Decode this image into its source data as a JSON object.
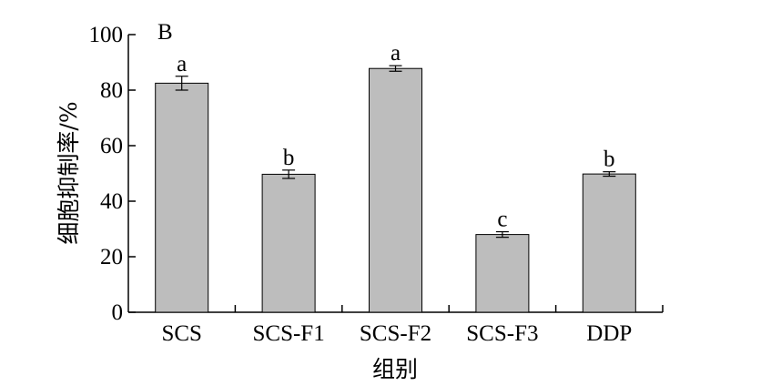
{
  "chart_data": {
    "type": "bar",
    "panel_label": "B",
    "categories": [
      "SCS",
      "SCS-F1",
      "SCS-F2",
      "SCS-F3",
      "DDP"
    ],
    "values": [
      82.5,
      49.7,
      87.8,
      28.0,
      49.8
    ],
    "errors": [
      2.5,
      1.5,
      1.0,
      1.0,
      0.8
    ],
    "significance": [
      "a",
      "b",
      "a",
      "c",
      "b"
    ],
    "xlabel": "组别",
    "ylabel": "细胞抑制率/%",
    "ylim": [
      0,
      100
    ],
    "yticks": [
      0,
      20,
      40,
      60,
      80,
      100
    ],
    "bar_color": "#bdbdbd",
    "bar_edge_color": "#000000",
    "grid": false
  }
}
